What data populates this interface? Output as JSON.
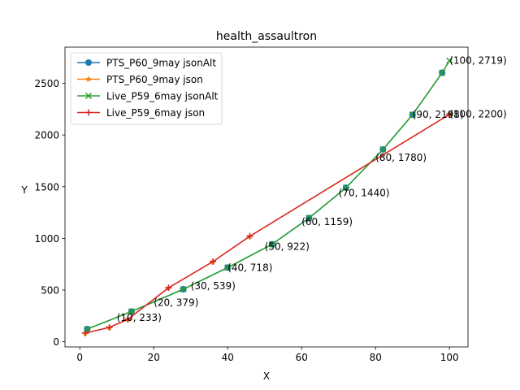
{
  "chart_data": {
    "type": "line",
    "title": "health_assaultron",
    "xlabel": "X",
    "ylabel": "Y",
    "xlim": [
      -4,
      105
    ],
    "ylim": [
      -50,
      2850
    ],
    "xticks": [
      0,
      20,
      40,
      60,
      80,
      100
    ],
    "yticks": [
      0,
      500,
      1000,
      1500,
      2000,
      2500
    ],
    "grid": false,
    "legend_position": "upper-left",
    "series": [
      {
        "name": "PTS_P60_9may jsonAlt",
        "color": "#1f77b4",
        "marker": "circle",
        "x": [
          2,
          14,
          28,
          40,
          52,
          62,
          72,
          82,
          90,
          98
        ],
        "y": [
          122,
          293,
          508,
          718,
          943,
          1197,
          1490,
          1860,
          2196,
          2602
        ]
      },
      {
        "name": "PTS_P60_9may json",
        "color": "#ff7f0e",
        "marker": "star",
        "x": [
          1.5,
          8,
          13,
          24,
          36,
          46,
          100
        ],
        "y": [
          84,
          139,
          217,
          522,
          775,
          1021,
          2200
        ]
      },
      {
        "name": "Live_P59_6may jsonAlt",
        "color": "#2ca02c",
        "marker": "x",
        "x": [
          2,
          14,
          28,
          40,
          52,
          62,
          72,
          82,
          90,
          98,
          100
        ],
        "y": [
          122,
          293,
          508,
          718,
          943,
          1197,
          1490,
          1860,
          2196,
          2602,
          2719
        ]
      },
      {
        "name": "Live_P59_6may json",
        "color": "#d62728",
        "marker": "plus",
        "x": [
          1.5,
          8,
          13,
          24,
          36,
          46,
          100
        ],
        "y": [
          84,
          139,
          217,
          522,
          775,
          1021,
          2200
        ]
      }
    ],
    "annotations": [
      {
        "text": "(10, 233)",
        "x": 10,
        "y": 233
      },
      {
        "text": "(20, 379)",
        "x": 20,
        "y": 379
      },
      {
        "text": "(30, 539)",
        "x": 30,
        "y": 539
      },
      {
        "text": "(40, 718)",
        "x": 40,
        "y": 718
      },
      {
        "text": "(50, 922)",
        "x": 50,
        "y": 922
      },
      {
        "text": "(60, 1159)",
        "x": 60,
        "y": 1159
      },
      {
        "text": "(70, 1440)",
        "x": 70,
        "y": 1440
      },
      {
        "text": "(80, 1780)",
        "x": 80,
        "y": 1780
      },
      {
        "text": "(90, 2198)",
        "x": 90,
        "y": 2198
      },
      {
        "text": "(100, 2200)",
        "x": 100,
        "y": 2200
      },
      {
        "text": "(100, 2719)",
        "x": 100,
        "y": 2719
      }
    ]
  }
}
